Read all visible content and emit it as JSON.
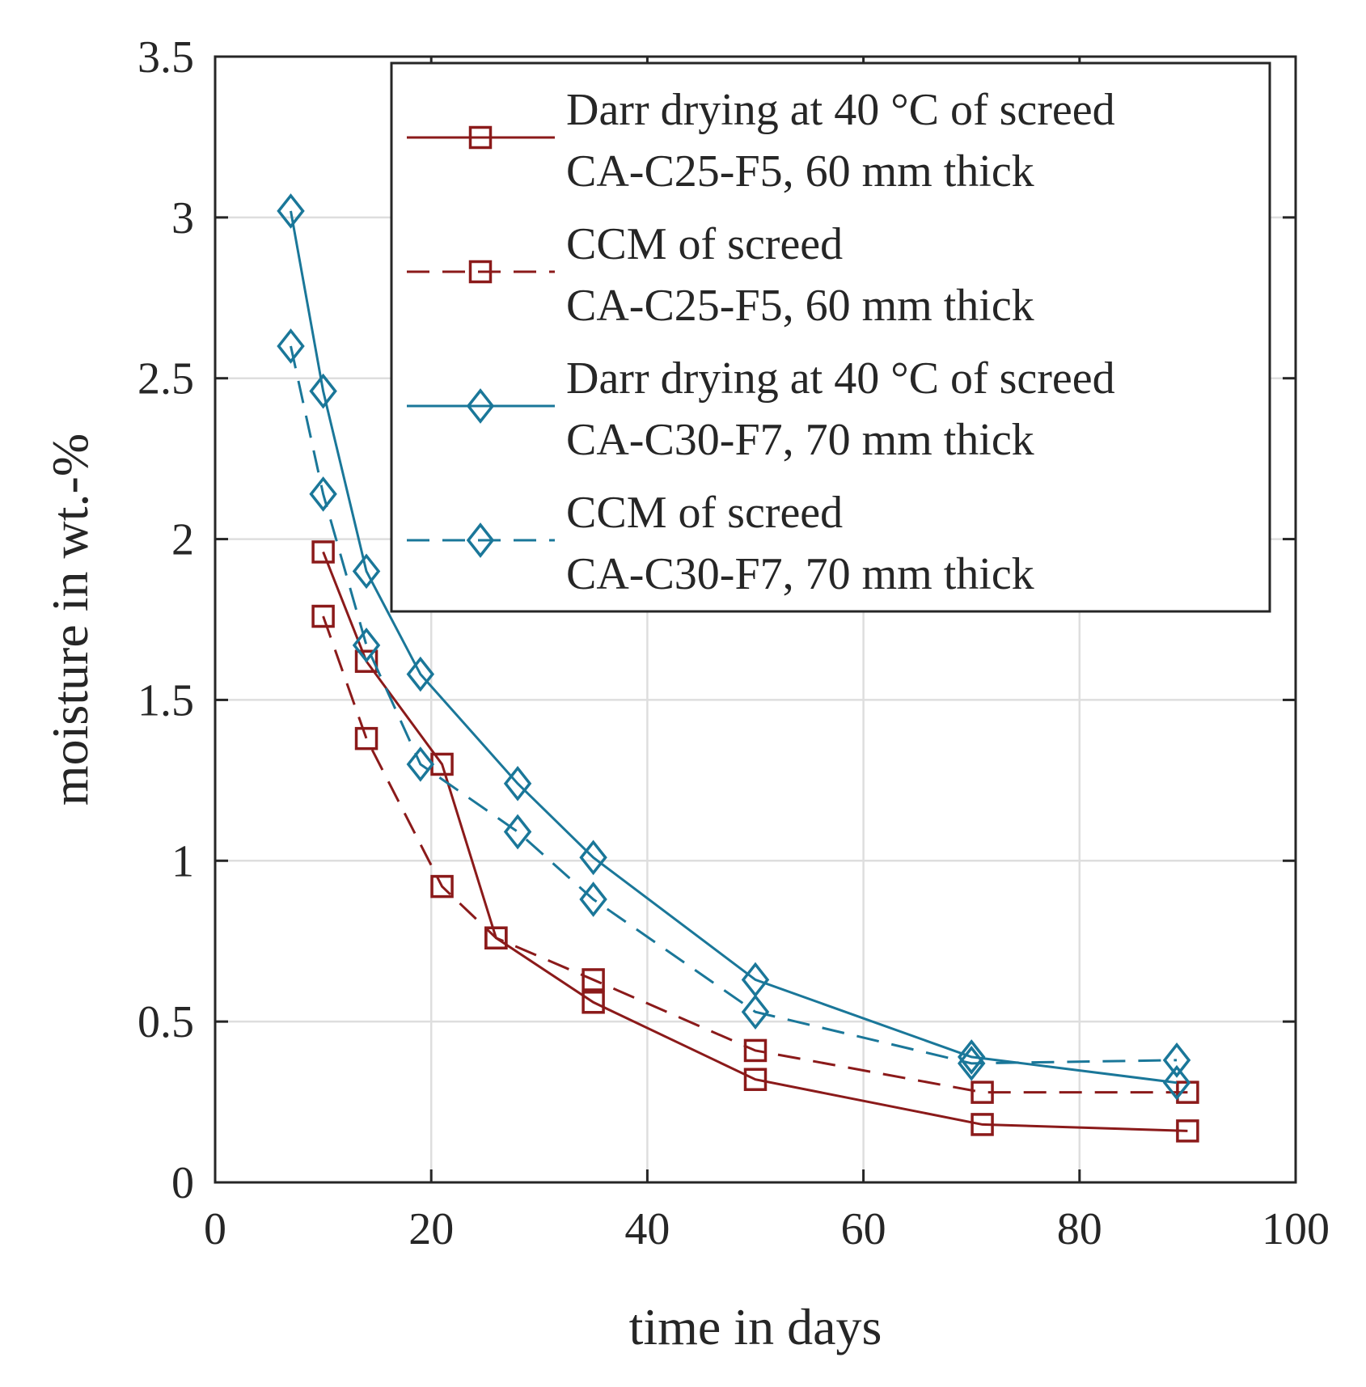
{
  "chart_data": {
    "type": "line",
    "title": "",
    "xlabel": "time in days",
    "ylabel": "moisture in wt.-%",
    "xlim": [
      0,
      100
    ],
    "ylim": [
      0,
      3.5
    ],
    "xticks": [
      0,
      20,
      40,
      60,
      80,
      100
    ],
    "yticks": [
      0,
      0.5,
      1,
      1.5,
      2,
      2.5,
      3,
      3.5
    ],
    "xtick_labels": [
      "0",
      "20",
      "40",
      "60",
      "80",
      "100"
    ],
    "ytick_labels": [
      "0",
      "0.5",
      "1",
      "1.5",
      "2",
      "2.5",
      "3",
      "3.5"
    ],
    "grid": true,
    "legend_position": "top-right",
    "series": [
      {
        "name": "Darr drying at 40 °C of screed CA-C25-F5, 60 mm thick",
        "legend_lines": [
          "Darr drying at 40 °C of screed",
          "CA-C25-F5, 60 mm thick"
        ],
        "color": "#8b1a1a",
        "line": "solid",
        "marker": "square",
        "x": [
          10,
          14,
          21,
          26,
          35,
          50,
          71,
          90
        ],
        "y": [
          1.96,
          1.62,
          1.3,
          0.76,
          0.56,
          0.32,
          0.18,
          0.16
        ]
      },
      {
        "name": "CCM of screed CA-C25-F5, 60 mm thick",
        "legend_lines": [
          "CCM of screed",
          "CA-C25-F5, 60 mm thick"
        ],
        "color": "#8b1a1a",
        "line": "dashed",
        "marker": "square",
        "x": [
          10,
          14,
          21,
          26,
          35,
          50,
          71,
          90
        ],
        "y": [
          1.76,
          1.38,
          0.92,
          0.76,
          0.63,
          0.41,
          0.28,
          0.28
        ]
      },
      {
        "name": "Darr drying at 40 °C of screed CA-C30-F7, 70 mm thick",
        "legend_lines": [
          "Darr drying at 40 °C of screed",
          "CA-C30-F7, 70 mm thick"
        ],
        "color": "#1a7799",
        "line": "solid",
        "marker": "diamond",
        "x": [
          7,
          10,
          14,
          19,
          28,
          35,
          50,
          70,
          89
        ],
        "y": [
          3.02,
          2.46,
          1.9,
          1.58,
          1.24,
          1.01,
          0.63,
          0.39,
          0.31
        ]
      },
      {
        "name": "CCM of screed CA-C30-F7, 70 mm thick",
        "legend_lines": [
          "CCM of screed",
          "CA-C30-F7, 70 mm thick"
        ],
        "color": "#1a7799",
        "line": "dashed",
        "marker": "diamond",
        "x": [
          7,
          10,
          14,
          19,
          28,
          35,
          50,
          70,
          89
        ],
        "y": [
          2.6,
          2.14,
          1.67,
          1.3,
          1.09,
          0.88,
          0.53,
          0.37,
          0.38
        ]
      }
    ]
  }
}
